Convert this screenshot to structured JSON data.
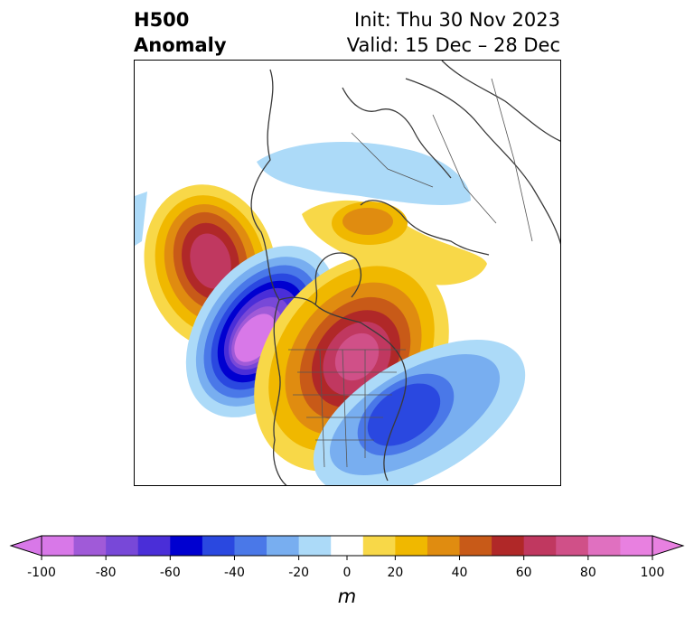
{
  "header": {
    "left_line1": "H500",
    "left_line2": "Anomaly",
    "right_line1": "Init: Thu 30 Nov 2023",
    "right_line2": "Valid: 15 Dec – 28 Dec"
  },
  "colorbar": {
    "units": "m",
    "tick_labels": [
      "-100",
      "-80",
      "-60",
      "-40",
      "-20",
      "0",
      "20",
      "40",
      "60",
      "80",
      "100"
    ],
    "bins": [
      -100,
      -90,
      -80,
      -70,
      -60,
      -50,
      -40,
      -30,
      -20,
      -10,
      10,
      20,
      30,
      40,
      50,
      60,
      70,
      80,
      90,
      100
    ],
    "colors": [
      "#d878e8",
      "#a05ad8",
      "#7848d8",
      "#4a2ed8",
      "#0000d0",
      "#2a48e0",
      "#4a78e8",
      "#78aef0",
      "#acdaf8",
      "#ffffff",
      "#f8d848",
      "#f0b800",
      "#e08c10",
      "#c85a18",
      "#b02828",
      "#c03860",
      "#d05088",
      "#e070c0",
      "#e880e0"
    ]
  },
  "map": {
    "projection": "polar stereographic, Northern Hemisphere (North America sector)",
    "features": [
      "coastlines",
      "country borders",
      "state/province borders"
    ],
    "anomaly_centers": [
      {
        "sign": "positive",
        "region": "Gulf of Alaska / NE Pacific",
        "peak_m": 70
      },
      {
        "sign": "negative",
        "region": "Western Canada / Pacific Northwest",
        "peak_m": -100
      },
      {
        "sign": "positive",
        "region": "Central Canada / Great Lakes / Hudson Bay",
        "peak_m": 80
      },
      {
        "sign": "negative",
        "region": "Western North Atlantic off US East Coast",
        "peak_m": -60
      },
      {
        "sign": "negative",
        "region": "Arctic / Siberia",
        "peak_m": -20
      },
      {
        "sign": "positive",
        "region": "Greenland / North Atlantic",
        "peak_m": 40
      }
    ]
  }
}
